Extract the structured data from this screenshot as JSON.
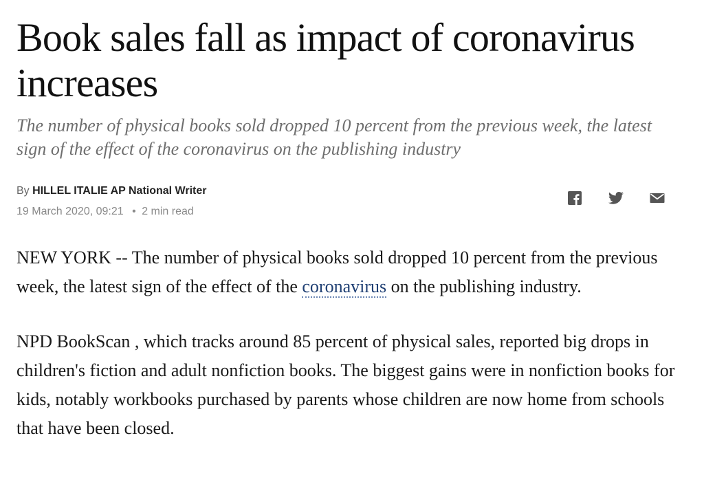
{
  "article": {
    "headline": "Book sales fall as impact of coronavirus increases",
    "subhead": "The number of physical books sold dropped 10 percent from the previous week, the latest sign of the effect of the coronavirus on the publishing industry",
    "byline": {
      "prefix": "By",
      "author": "HILLEL ITALIE AP National Writer"
    },
    "meta": {
      "date": "19 March 2020, 09:21",
      "separator": "•",
      "read_time": "2 min read"
    },
    "share": {
      "icons": [
        "facebook-icon",
        "twitter-icon",
        "email-icon"
      ],
      "color": "#555555"
    },
    "paragraphs": {
      "p1_before": "NEW YORK -- The number of physical books sold dropped 10 percent from the previous week, the latest sign of the effect of the ",
      "p1_link": "coronavirus",
      "p1_after": " on the publishing industry.",
      "p2": "NPD BookScan , which tracks around 85 percent of physical sales, reported big drops in children's fiction and adult nonfiction books. The biggest gains were in nonfiction books for kids, notably workbooks purchased by parents whose children are now home from schools that have been closed."
    },
    "colors": {
      "link": "#1f3f73",
      "subhead": "#6e6e6e",
      "text": "#1a1a1a"
    }
  }
}
